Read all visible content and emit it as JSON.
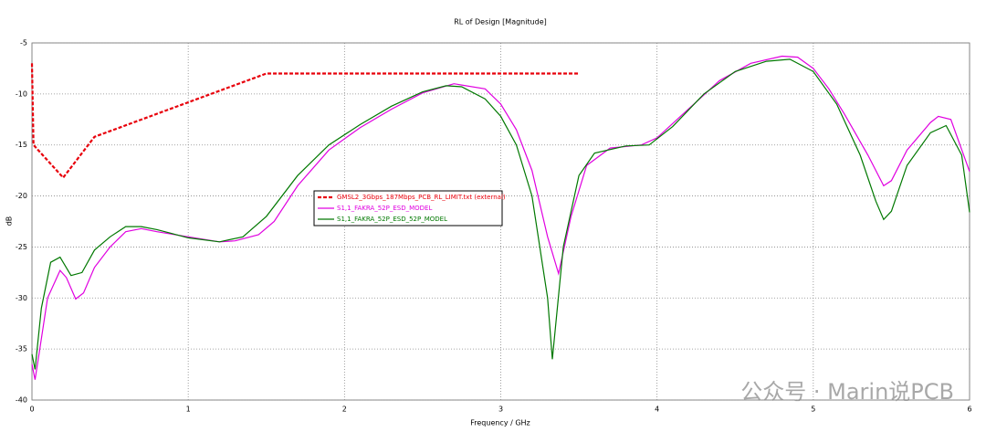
{
  "chart_data": {
    "type": "line",
    "title": "RL of Design [Magnitude]",
    "xlabel": "Frequency / GHz",
    "ylabel": "dB",
    "xlim": [
      0,
      6
    ],
    "xticks": [
      0,
      1,
      2,
      3,
      4,
      5,
      6
    ],
    "ylim": [
      -40,
      -5
    ],
    "yticks": [
      -5,
      -10,
      -15,
      -20,
      -25,
      -30,
      -35,
      -40
    ],
    "grid": true,
    "watermark": "公众号 · Marin说PCB",
    "series": [
      {
        "name": "GMSL2_3Gbps_187Mbps_PCB_RL_LIMIT.txt (external)",
        "color": "#e8000b",
        "dashed": true,
        "x": [
          0,
          0.01,
          0.2,
          0.4,
          1.5,
          3.5
        ],
        "values": [
          -7,
          -15,
          -18.2,
          -14.2,
          -8,
          -8
        ]
      },
      {
        "name": "S1,1_FAKRA_52P_ESD_MODEL",
        "color": "#e000e0",
        "dashed": false,
        "x": [
          0,
          0.02,
          0.05,
          0.1,
          0.18,
          0.22,
          0.28,
          0.33,
          0.4,
          0.5,
          0.6,
          0.7,
          0.8,
          1.0,
          1.2,
          1.3,
          1.45,
          1.55,
          1.7,
          1.9,
          2.1,
          2.3,
          2.5,
          2.7,
          2.9,
          3.0,
          3.1,
          3.2,
          3.3,
          3.37,
          3.45,
          3.55,
          3.7,
          3.9,
          4.0,
          4.2,
          4.4,
          4.6,
          4.8,
          4.9,
          5.0,
          5.1,
          5.2,
          5.35,
          5.45,
          5.5,
          5.6,
          5.75,
          5.8,
          5.88,
          6.0
        ],
        "values": [
          -36.5,
          -38,
          -35,
          -30,
          -27.3,
          -28,
          -30.1,
          -29.5,
          -27,
          -25,
          -23.5,
          -23.2,
          -23.5,
          -24,
          -24.5,
          -24.4,
          -23.8,
          -22.5,
          -19,
          -15.5,
          -13.3,
          -11.5,
          -9.9,
          -9,
          -9.5,
          -11,
          -13.5,
          -17.5,
          -24,
          -27.6,
          -22,
          -17,
          -15.3,
          -15,
          -14.3,
          -11.5,
          -8.7,
          -7,
          -6.3,
          -6.4,
          -7.5,
          -9.5,
          -12,
          -16,
          -19,
          -18.5,
          -15.5,
          -12.8,
          -12.2,
          -12.5,
          -17.6
        ]
      },
      {
        "name": "S1,1_FAKRA_52P_ESD_52P_MODEL",
        "color": "#007800",
        "dashed": false,
        "x": [
          0,
          0.02,
          0.06,
          0.12,
          0.18,
          0.25,
          0.32,
          0.4,
          0.5,
          0.6,
          0.7,
          0.8,
          1.0,
          1.2,
          1.35,
          1.5,
          1.7,
          1.9,
          2.1,
          2.3,
          2.5,
          2.65,
          2.75,
          2.9,
          3.0,
          3.1,
          3.2,
          3.3,
          3.33,
          3.4,
          3.5,
          3.6,
          3.8,
          3.95,
          4.1,
          4.3,
          4.5,
          4.7,
          4.85,
          5.0,
          5.15,
          5.3,
          5.4,
          5.45,
          5.5,
          5.6,
          5.75,
          5.85,
          5.95,
          6.0
        ],
        "values": [
          -35.5,
          -37,
          -31,
          -26.5,
          -26,
          -27.8,
          -27.5,
          -25.3,
          -24,
          -23,
          -23,
          -23.3,
          -24.1,
          -24.5,
          -24,
          -22,
          -18,
          -15,
          -13,
          -11.2,
          -9.8,
          -9.2,
          -9.3,
          -10.5,
          -12.2,
          -15,
          -20,
          -30,
          -36,
          -25,
          -18,
          -15.8,
          -15.1,
          -15,
          -13.2,
          -10,
          -7.8,
          -6.8,
          -6.6,
          -7.8,
          -11,
          -16,
          -20.5,
          -22.3,
          -21.5,
          -17,
          -13.8,
          -13.1,
          -16,
          -21.6
        ]
      }
    ]
  }
}
